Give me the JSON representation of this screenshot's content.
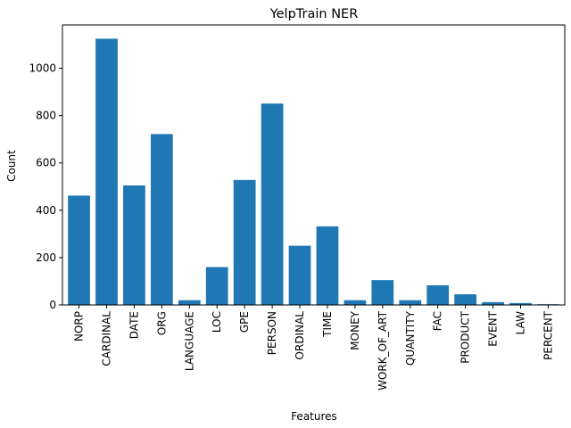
{
  "chart_data": {
    "type": "bar",
    "title": "YelpTrain NER",
    "xlabel": "Features",
    "ylabel": "Count",
    "categories": [
      "NORP",
      "CARDINAL",
      "DATE",
      "ORG",
      "LANGUAGE",
      "LOC",
      "GPE",
      "PERSON",
      "ORDINAL",
      "TIME",
      "MONEY",
      "WORK_OF_ART",
      "QUANTITY",
      "FAC",
      "PRODUCT",
      "EVENT",
      "LAW",
      "PERCENT"
    ],
    "values": [
      462,
      1125,
      505,
      722,
      20,
      160,
      528,
      851,
      250,
      332,
      20,
      105,
      20,
      83,
      45,
      12,
      8,
      3
    ],
    "ylim": [
      0,
      1183
    ],
    "yticks": [
      0,
      200,
      400,
      600,
      800,
      1000
    ],
    "grid": false,
    "bar_color": "#1f77b4"
  }
}
